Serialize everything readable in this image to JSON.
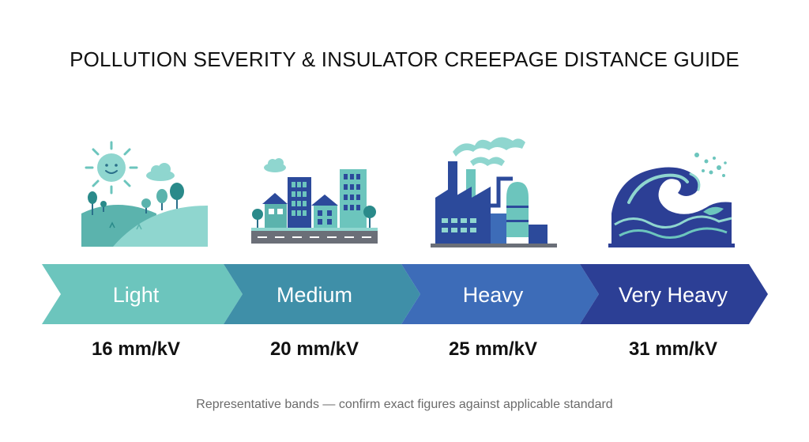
{
  "title": "POLLUTION SEVERITY & INSULATOR CREEPAGE DISTANCE GUIDE",
  "colors": {
    "light": "#6cc5bd",
    "medium": "#3f8fa8",
    "heavy": "#3d6cb8",
    "very_heavy": "#2c3f95",
    "text": "#111111",
    "footnote": "#6b6b6b"
  },
  "levels": [
    {
      "label": "Light",
      "value": "16 mm/kV",
      "icon": "countryside-icon"
    },
    {
      "label": "Medium",
      "value": "20 mm/kV",
      "icon": "city-icon"
    },
    {
      "label": "Heavy",
      "value": "25 mm/kV",
      "icon": "factory-icon"
    },
    {
      "label": "Very Heavy",
      "value": "31 mm/kV",
      "icon": "ocean-wave-icon"
    }
  ],
  "footnote": "Representative bands — confirm exact figures against applicable standard"
}
